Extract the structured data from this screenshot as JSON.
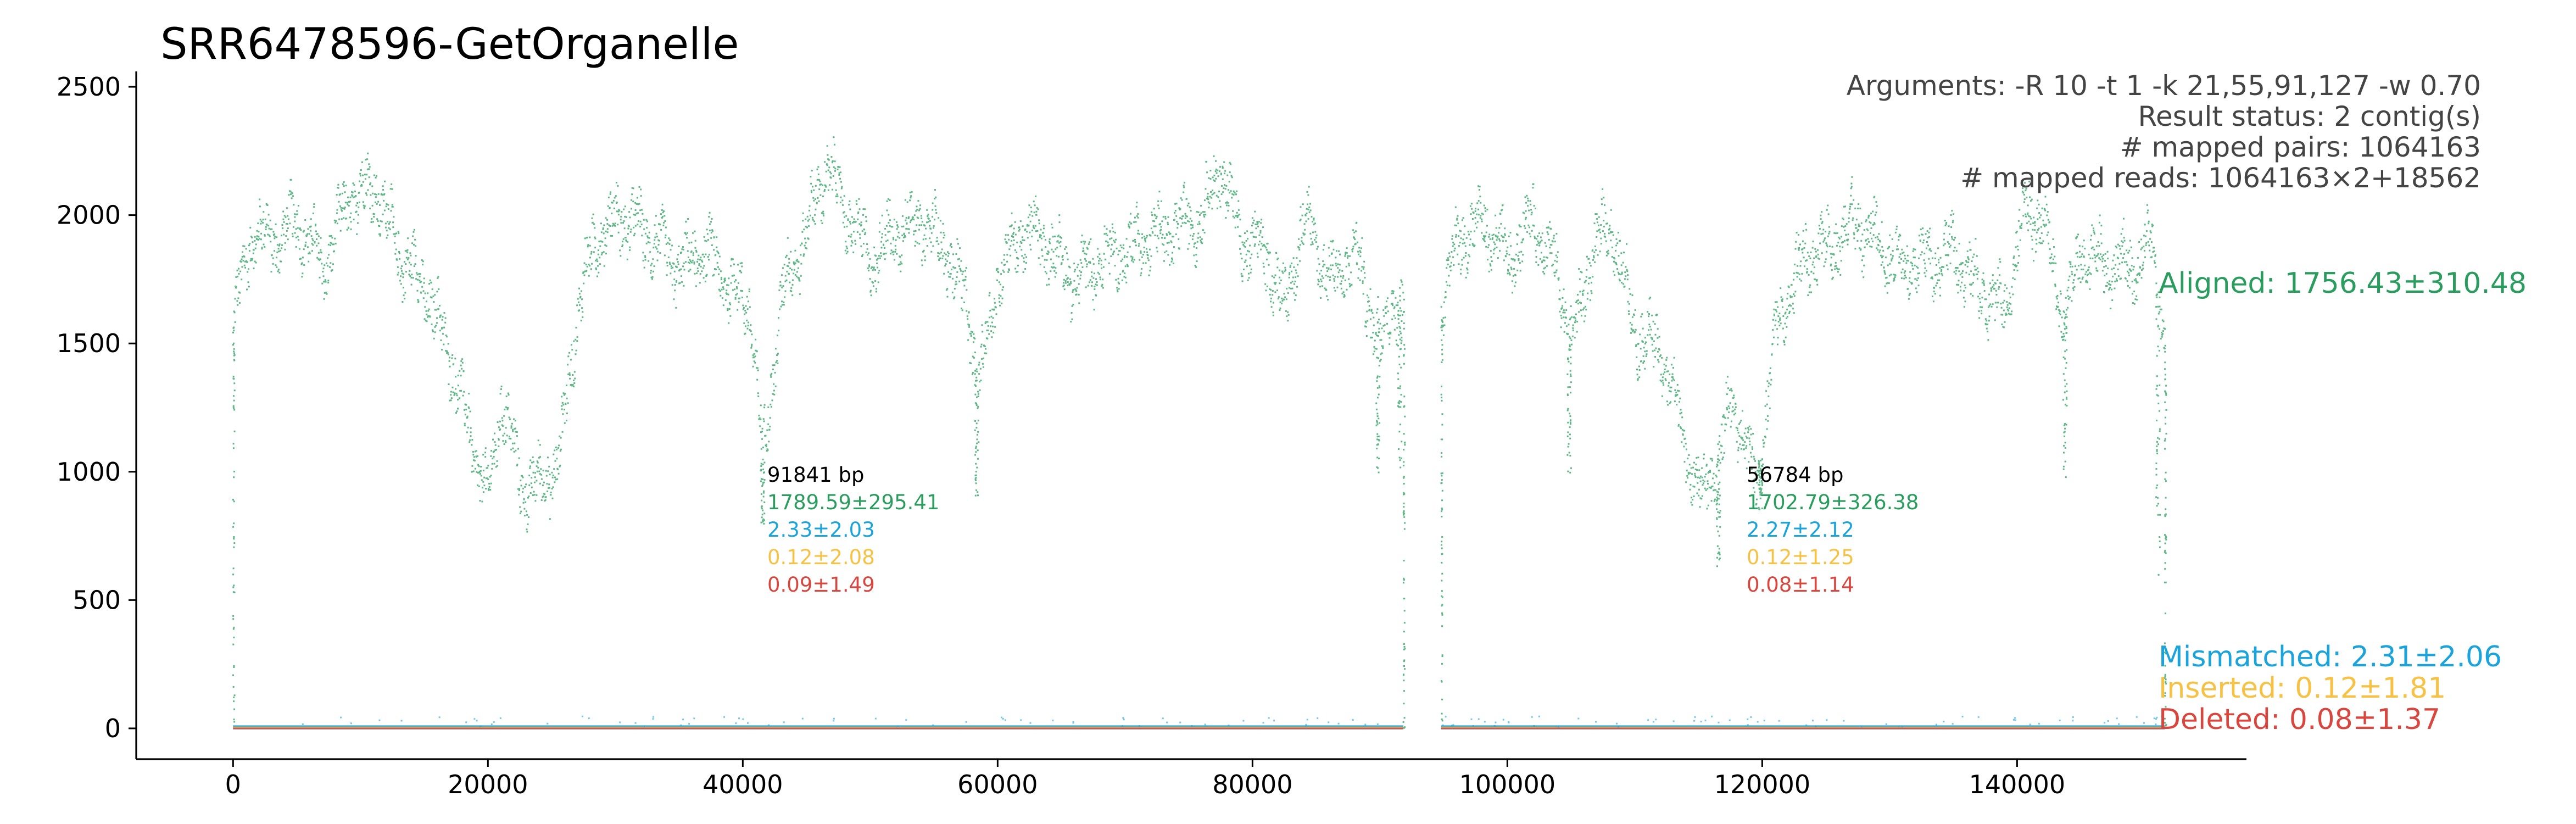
{
  "chart_data": {
    "type": "scatter",
    "title": "SRR6478596-GetOrganelle",
    "xlabel": "",
    "ylabel": "",
    "xlim": [
      -7600,
      158000
    ],
    "ylim": [
      -120,
      2560
    ],
    "x_ticks": [
      0,
      20000,
      40000,
      60000,
      80000,
      100000,
      120000,
      140000
    ],
    "x_tick_labels": [
      "0",
      "20000",
      "40000",
      "60000",
      "80000",
      "100000",
      "120000",
      "140000"
    ],
    "y_ticks": [
      0,
      500,
      1000,
      1500,
      2000,
      2500
    ],
    "y_tick_labels": [
      "0",
      "500",
      "1000",
      "1500",
      "2000",
      "2500"
    ],
    "grid": false,
    "info": {
      "arguments": "Arguments: -R 10 -t 1 -k 21,55,91,127 -w 0.70",
      "status": "Result status: 2 contig(s)",
      "pairs": "# mapped pairs: 1064163",
      "reads": "# mapped reads: 1064163×2+18562"
    },
    "legend_position": "right",
    "series": [
      {
        "name": "Aligned",
        "label": "Aligned: 1756.43±310.48",
        "color": "#2a9d5e"
      },
      {
        "name": "Mismatched",
        "label": "Mismatched: 2.31±2.06",
        "color": "#1ba3dc"
      },
      {
        "name": "Inserted",
        "label": "Inserted: 0.12±1.81",
        "color": "#f7c244"
      },
      {
        "name": "Deleted",
        "label": "Deleted: 0.08±1.37",
        "color": "#d9463e"
      }
    ],
    "contigs": [
      {
        "start": 0,
        "end": 91841,
        "length_label": "91841 bp",
        "aligned": "1789.59±295.41",
        "mismatched": "2.33±2.03",
        "inserted": "0.12±2.08",
        "deleted": "0.09±1.49",
        "aligned_profile": [
          [
            0,
            1600
          ],
          [
            1500,
            1950
          ],
          [
            3000,
            1900
          ],
          [
            5000,
            1980
          ],
          [
            7000,
            1800
          ],
          [
            9000,
            2060
          ],
          [
            11000,
            2120
          ],
          [
            13000,
            1850
          ],
          [
            15000,
            1720
          ],
          [
            17000,
            1450
          ],
          [
            19000,
            1050
          ],
          [
            20000,
            900
          ],
          [
            21000,
            1300
          ],
          [
            22500,
            950
          ],
          [
            24000,
            950
          ],
          [
            25500,
            1050
          ],
          [
            27000,
            1650
          ],
          [
            28500,
            1930
          ],
          [
            30500,
            2000
          ],
          [
            32500,
            1920
          ],
          [
            35000,
            1800
          ],
          [
            37000,
            1870
          ],
          [
            39000,
            1720
          ],
          [
            40500,
            1650
          ],
          [
            41500,
            1050
          ],
          [
            43000,
            1700
          ],
          [
            45000,
            1950
          ],
          [
            46500,
            2200
          ],
          [
            48000,
            2020
          ],
          [
            50000,
            1820
          ],
          [
            52000,
            1950
          ],
          [
            54000,
            1980
          ],
          [
            56000,
            1860
          ],
          [
            57500,
            1650
          ],
          [
            58500,
            1350
          ],
          [
            60000,
            1780
          ],
          [
            62000,
            1950
          ],
          [
            64000,
            1880
          ],
          [
            66000,
            1750
          ],
          [
            68000,
            1820
          ],
          [
            70000,
            1870
          ],
          [
            72000,
            1920
          ],
          [
            74000,
            1950
          ],
          [
            76000,
            2000
          ],
          [
            77500,
            2200
          ],
          [
            79000,
            1900
          ],
          [
            81000,
            1850
          ],
          [
            82500,
            1650
          ],
          [
            84000,
            2000
          ],
          [
            86000,
            1750
          ],
          [
            88000,
            1850
          ],
          [
            90000,
            1500
          ],
          [
            91000,
            1700
          ],
          [
            91841,
            1600
          ]
        ],
        "dips": [
          [
            41500,
            800
          ],
          [
            58300,
            900
          ],
          [
            89800,
            980
          ],
          [
            91500,
            980
          ]
        ]
      },
      {
        "start": 94800,
        "end": 151584,
        "length_label": "56784 bp",
        "aligned": "1702.79±326.38",
        "mismatched": "2.27±2.12",
        "inserted": "0.12±1.25",
        "deleted": "0.08±1.14",
        "aligned_profile": [
          [
            94800,
            1650
          ],
          [
            96000,
            1900
          ],
          [
            98000,
            1980
          ],
          [
            100000,
            1820
          ],
          [
            102000,
            2000
          ],
          [
            104000,
            1750
          ],
          [
            105000,
            1500
          ],
          [
            106500,
            1850
          ],
          [
            108000,
            1970
          ],
          [
            110000,
            1550
          ],
          [
            112000,
            1470
          ],
          [
            113500,
            1200
          ],
          [
            115000,
            900
          ],
          [
            116500,
            1050
          ],
          [
            117500,
            1280
          ],
          [
            118500,
            1150
          ],
          [
            119500,
            950
          ],
          [
            121000,
            1550
          ],
          [
            123000,
            1820
          ],
          [
            125000,
            1870
          ],
          [
            127000,
            1980
          ],
          [
            129000,
            1900
          ],
          [
            131000,
            1800
          ],
          [
            133000,
            1830
          ],
          [
            135000,
            1860
          ],
          [
            137000,
            1700
          ],
          [
            139000,
            1650
          ],
          [
            140500,
            2020
          ],
          [
            142000,
            1980
          ],
          [
            143500,
            1600
          ],
          [
            145000,
            1850
          ],
          [
            147000,
            1820
          ],
          [
            149000,
            1800
          ],
          [
            150500,
            1900
          ],
          [
            151584,
            1500
          ]
        ],
        "dips": [
          [
            104800,
            1000
          ],
          [
            116500,
            620
          ],
          [
            119800,
            850
          ],
          [
            143700,
            950
          ],
          [
            151000,
            600
          ]
        ]
      }
    ]
  }
}
